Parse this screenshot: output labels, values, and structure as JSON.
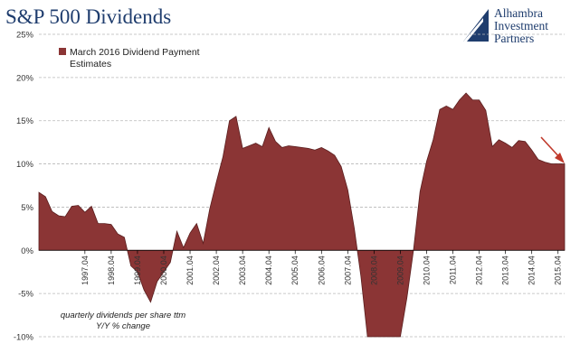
{
  "header": {
    "title": "S&P 500 Dividends"
  },
  "logo": {
    "line1": "Alhambra",
    "line2": "Investment",
    "line3": "Partners"
  },
  "annotation": {
    "line1": "quarterly dividends per share ttm",
    "line2": "Y/Y % change"
  },
  "colors": {
    "area_fill": "#8b3535",
    "area_stroke": "#5a1e1e",
    "arrow": "#c0392b",
    "title": "#1f3d6e"
  },
  "chart_data": {
    "type": "area",
    "title": "S&P 500 Dividends",
    "ylim": [
      -10,
      25
    ],
    "ytick_labels": [
      "25%",
      "20%",
      "15%",
      "10%",
      "5%",
      "0%",
      "-5%",
      "-10%"
    ],
    "ytick_values": [
      25,
      20,
      15,
      10,
      5,
      0,
      -5,
      -10
    ],
    "xtick_labels": [
      "1997.04",
      "1998.04",
      "1999.04",
      "2000.04",
      "2001.04",
      "2002.04",
      "2003.04",
      "2004.04",
      "2005.04",
      "2006.04",
      "2007.04",
      "2008.04",
      "2009.04",
      "2010.04",
      "2011.04",
      "2012.04",
      "2013.04",
      "2014.04",
      "2015.04"
    ],
    "grid": true,
    "legend": {
      "position": "top-left",
      "line1": "March 2016 Dividend Payment",
      "line2": "Estimates"
    },
    "series": [
      {
        "x": [
          "1996.Q1",
          "1996.Q2",
          "1996.Q3",
          "1996.Q4",
          "1997.Q1",
          "1997.Q2",
          "1997.Q3",
          "1997.Q4",
          "1998.Q1",
          "1998.Q2",
          "1998.Q3",
          "1998.Q4",
          "1999.Q1",
          "1999.Q2",
          "1999.Q3",
          "1999.Q4",
          "2000.Q1",
          "2000.Q2",
          "2000.Q3",
          "2000.Q4",
          "2001.Q1",
          "2001.Q2",
          "2001.Q3",
          "2001.Q4",
          "2002.Q1",
          "2002.Q2",
          "2002.Q3",
          "2002.Q4",
          "2003.Q1",
          "2003.Q2",
          "2003.Q3",
          "2003.Q4",
          "2004.Q1",
          "2004.Q2",
          "2004.Q3",
          "2004.Q4",
          "2005.Q1",
          "2005.Q2",
          "2005.Q3",
          "2005.Q4",
          "2006.Q1",
          "2006.Q2",
          "2006.Q3",
          "2006.Q4",
          "2007.Q1",
          "2007.Q2",
          "2007.Q3",
          "2007.Q4",
          "2008.Q1",
          "2008.Q2",
          "2008.Q3",
          "2008.Q4",
          "2009.Q1",
          "2009.Q2",
          "2009.Q3",
          "2009.Q4",
          "2010.Q1",
          "2010.Q2",
          "2010.Q3",
          "2010.Q4",
          "2011.Q1",
          "2011.Q2",
          "2011.Q3",
          "2011.Q4",
          "2012.Q1",
          "2012.Q2",
          "2012.Q3",
          "2012.Q4",
          "2013.Q1",
          "2013.Q2",
          "2013.Q3",
          "2013.Q4",
          "2014.Q1",
          "2014.Q2",
          "2014.Q3",
          "2014.Q4",
          "2015.Q1",
          "2015.Q2",
          "2015.Q3",
          "2015.Q4",
          "2016.Q1"
        ],
        "values": [
          6.7,
          6.2,
          4.5,
          4.0,
          3.9,
          5.1,
          5.2,
          4.4,
          5.1,
          3.1,
          3.1,
          3.0,
          1.9,
          1.5,
          -1.8,
          -2.5,
          -4.6,
          -6.0,
          -3.6,
          -2.5,
          -1.4,
          2.2,
          0.3,
          2.0,
          3.1,
          0.8,
          4.8,
          7.9,
          10.8,
          15.0,
          15.5,
          11.8,
          12.1,
          12.4,
          12.0,
          14.2,
          12.6,
          11.9,
          12.1,
          12.0,
          11.9,
          11.8,
          11.6,
          11.9,
          11.5,
          11.0,
          9.7,
          7.0,
          2.5,
          -3.0,
          -10.0,
          -10.0,
          -10.0,
          -10.0,
          -10.0,
          -10.0,
          -5.5,
          0.0,
          6.8,
          10.3,
          12.8,
          16.3,
          16.7,
          16.3,
          17.4,
          18.2,
          17.4,
          17.4,
          16.2,
          12.0,
          12.8,
          12.4,
          11.9,
          12.7,
          12.6,
          11.6,
          10.5,
          10.2,
          10.0,
          10.0,
          10.0
        ]
      }
    ]
  }
}
